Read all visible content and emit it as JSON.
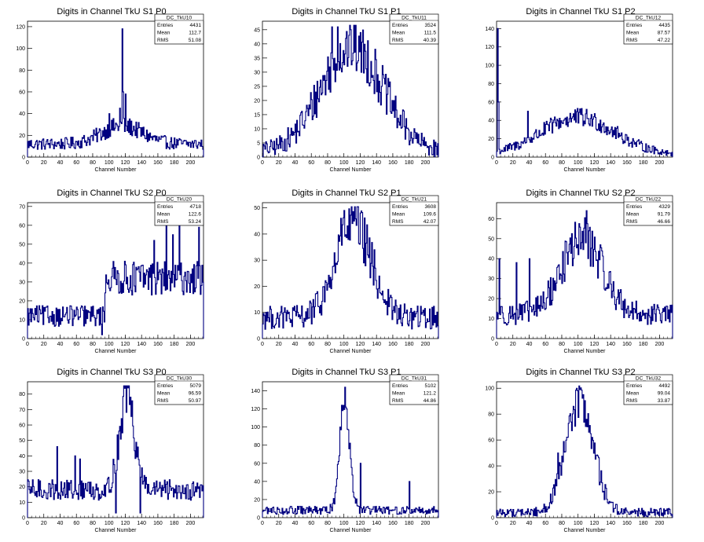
{
  "chart_data": [
    {
      "type": "histogram",
      "title": "Digits in Channel TkU S1 P0",
      "xlabel": "Channel Number",
      "ylabel": "",
      "xlim": [
        0,
        216
      ],
      "ylim": [
        0,
        125
      ],
      "xticks": [
        "0",
        "20",
        "40",
        "60",
        "80",
        "100",
        "120",
        "140",
        "160",
        "180",
        "200"
      ],
      "yticks": [
        "0",
        "20",
        "40",
        "60",
        "80",
        "100",
        "120"
      ],
      "stats": {
        "name": "DC_TkU10",
        "rows": [
          [
            "Entries",
            "4431"
          ],
          [
            "Mean",
            "112.7"
          ],
          [
            "RMS",
            "51.08"
          ]
        ]
      },
      "shape": {
        "kind": "flat",
        "p": [
          12,
          116,
          60,
          28,
          14
        ]
      },
      "spikes": [
        [
          116,
          118
        ],
        [
          117,
          60
        ],
        [
          120,
          58
        ],
        [
          113,
          45
        ],
        [
          100,
          40
        ]
      ],
      "line_color": "#000080"
    },
    {
      "type": "histogram",
      "title": "Digits in Channel TkU S1 P1",
      "xlabel": "Channel Number",
      "ylabel": "",
      "xlim": [
        0,
        216
      ],
      "ylim": [
        0,
        48
      ],
      "xticks": [
        "0",
        "20",
        "40",
        "60",
        "80",
        "100",
        "120",
        "140",
        "160",
        "180",
        "200"
      ],
      "yticks": [
        "0",
        "5",
        "10",
        "15",
        "20",
        "25",
        "30",
        "35",
        "40",
        "45"
      ],
      "stats": {
        "name": "DC_TkU11",
        "rows": [
          [
            "Entries",
            "3524"
          ],
          [
            "Mean",
            "111.5"
          ],
          [
            "RMS",
            "40.39"
          ]
        ]
      },
      "shape": {
        "kind": "gauss",
        "p": [
          37,
          110,
          38,
          2
        ]
      },
      "spikes": [
        [
          85,
          46
        ],
        [
          92,
          46
        ],
        [
          108,
          45
        ],
        [
          120,
          44
        ]
      ],
      "line_color": "#000080"
    },
    {
      "type": "histogram",
      "title": "Digits in Channel TkU S1 P2",
      "xlabel": "Channel Number",
      "ylabel": "",
      "xlim": [
        0,
        216
      ],
      "ylim": [
        0,
        148
      ],
      "xticks": [
        "0",
        "20",
        "40",
        "60",
        "80",
        "100",
        "120",
        "140",
        "160",
        "180",
        "200"
      ],
      "yticks": [
        "0",
        "20",
        "40",
        "60",
        "80",
        "100",
        "120",
        "140"
      ],
      "stats": {
        "name": "DC_TkU12",
        "rows": [
          [
            "Entries",
            "4435"
          ],
          [
            "Mean",
            "87.57"
          ],
          [
            "RMS",
            "47.22"
          ]
        ]
      },
      "shape": {
        "kind": "gauss",
        "p": [
          40,
          100,
          45,
          3
        ]
      },
      "spikes": [
        [
          1,
          140
        ],
        [
          2,
          60
        ],
        [
          38,
          50
        ]
      ],
      "line_color": "#000080"
    },
    {
      "type": "histogram",
      "title": "Digits in Channel TkU S2 P0",
      "xlabel": "Channel Number",
      "ylabel": "",
      "xlim": [
        0,
        216
      ],
      "ylim": [
        0,
        72
      ],
      "xticks": [
        "0",
        "20",
        "40",
        "60",
        "80",
        "100",
        "120",
        "140",
        "160",
        "180",
        "200"
      ],
      "yticks": [
        "0",
        "10",
        "20",
        "30",
        "40",
        "50",
        "60",
        "70"
      ],
      "stats": {
        "name": "DC_TkU20",
        "rows": [
          [
            "Entries",
            "4718"
          ],
          [
            "Mean",
            "122.6"
          ],
          [
            "RMS",
            "53.24"
          ]
        ]
      },
      "shape": {
        "kind": "step",
        "p": [
          12,
          95,
          32
        ]
      },
      "spikes": [
        [
          170,
          69
        ],
        [
          186,
          65
        ],
        [
          210,
          59
        ],
        [
          155,
          52
        ],
        [
          178,
          55
        ],
        [
          91,
          2
        ]
      ],
      "line_color": "#000080"
    },
    {
      "type": "histogram",
      "title": "Digits in Channel TkU S2 P1",
      "xlabel": "Channel Number",
      "ylabel": "",
      "xlim": [
        0,
        216
      ],
      "ylim": [
        0,
        52
      ],
      "xticks": [
        "0",
        "20",
        "40",
        "60",
        "80",
        "100",
        "120",
        "140",
        "160",
        "180",
        "200"
      ],
      "yticks": [
        "0",
        "10",
        "20",
        "30",
        "40",
        "50"
      ],
      "stats": {
        "name": "DC_TkU21",
        "rows": [
          [
            "Entries",
            "3608"
          ],
          [
            "Mean",
            "109.6"
          ],
          [
            "RMS",
            "42.07"
          ]
        ]
      },
      "shape": {
        "kind": "gauss",
        "p": [
          35,
          112,
          22,
          8
        ]
      },
      "spikes": [
        [
          100,
          49
        ],
        [
          96,
          46
        ],
        [
          110,
          44
        ],
        [
          4,
          10
        ]
      ],
      "line_color": "#000080"
    },
    {
      "type": "histogram",
      "title": "Digits in Channel TkU S2 P2",
      "xlabel": "Channel Number",
      "ylabel": "",
      "xlim": [
        0,
        216
      ],
      "ylim": [
        0,
        68
      ],
      "xticks": [
        "0",
        "20",
        "40",
        "60",
        "80",
        "100",
        "120",
        "140",
        "160",
        "180",
        "200"
      ],
      "yticks": [
        "0",
        "10",
        "20",
        "30",
        "40",
        "50",
        "60"
      ],
      "stats": {
        "name": "DC_TkU22",
        "rows": [
          [
            "Entries",
            "4329"
          ],
          [
            "Mean",
            "91.79"
          ],
          [
            "RMS",
            "46.66"
          ]
        ]
      },
      "shape": {
        "kind": "gauss",
        "p": [
          38,
          105,
          25,
          12
        ]
      },
      "spikes": [
        [
          110,
          64
        ],
        [
          3,
          40
        ],
        [
          24,
          38
        ],
        [
          40,
          40
        ]
      ],
      "line_color": "#000080"
    },
    {
      "type": "histogram",
      "title": "Digits in Channel TkU S3 P0",
      "xlabel": "Channel Number",
      "ylabel": "",
      "xlim": [
        0,
        216
      ],
      "ylim": [
        0,
        88
      ],
      "xticks": [
        "0",
        "20",
        "40",
        "60",
        "80",
        "100",
        "120",
        "140",
        "160",
        "180",
        "200"
      ],
      "yticks": [
        "0",
        "10",
        "20",
        "30",
        "40",
        "50",
        "60",
        "70",
        "80"
      ],
      "stats": {
        "name": "DC_TkU30",
        "rows": [
          [
            "Entries",
            "5079"
          ],
          [
            "Mean",
            "96.59"
          ],
          [
            "RMS",
            "50.97"
          ]
        ]
      },
      "shape": {
        "kind": "gauss",
        "p": [
          60,
          122,
          9,
          18
        ]
      },
      "spikes": [
        [
          123,
          84
        ],
        [
          126,
          78
        ],
        [
          36,
          46
        ],
        [
          58,
          40
        ],
        [
          64,
          38
        ],
        [
          108,
          3
        ],
        [
          138,
          3
        ]
      ],
      "line_color": "#000080"
    },
    {
      "type": "histogram",
      "title": "Digits in Channel TkU S3 P1",
      "xlabel": "Channel Number",
      "ylabel": "",
      "xlim": [
        0,
        216
      ],
      "ylim": [
        0,
        150
      ],
      "xticks": [
        "0",
        "20",
        "40",
        "60",
        "80",
        "100",
        "120",
        "140",
        "160",
        "180",
        "200"
      ],
      "yticks": [
        "0",
        "20",
        "40",
        "60",
        "80",
        "100",
        "120",
        "140"
      ],
      "stats": {
        "name": "DC_TkU31",
        "rows": [
          [
            "Entries",
            "5102"
          ],
          [
            "Mean",
            "121.2"
          ],
          [
            "RMS",
            "44.86"
          ]
        ]
      },
      "shape": {
        "kind": "gauss",
        "p": [
          125,
          101,
          6,
          8
        ]
      },
      "spikes": [
        [
          101,
          144
        ],
        [
          103,
          120
        ],
        [
          120,
          60
        ],
        [
          180,
          40
        ]
      ],
      "line_color": "#000080"
    },
    {
      "type": "histogram",
      "title": "Digits in Channel TkU S3 P2",
      "xlabel": "Channel Number",
      "ylabel": "",
      "xlim": [
        0,
        216
      ],
      "ylim": [
        0,
        105
      ],
      "xticks": [
        "0",
        "20",
        "40",
        "60",
        "80",
        "100",
        "120",
        "140",
        "160",
        "180",
        "200"
      ],
      "yticks": [
        "0",
        "20",
        "40",
        "60",
        "80",
        "100"
      ],
      "stats": {
        "name": "DC_TkU32",
        "rows": [
          [
            "Entries",
            "4492"
          ],
          [
            "Mean",
            "99.04"
          ],
          [
            "RMS",
            "33.87"
          ]
        ]
      },
      "shape": {
        "kind": "gauss",
        "p": [
          85,
          102,
          17,
          4
        ]
      },
      "spikes": [
        [
          98,
          100
        ],
        [
          102,
          99
        ],
        [
          106,
          95
        ],
        [
          75,
          50
        ]
      ],
      "line_color": "#000080"
    }
  ]
}
